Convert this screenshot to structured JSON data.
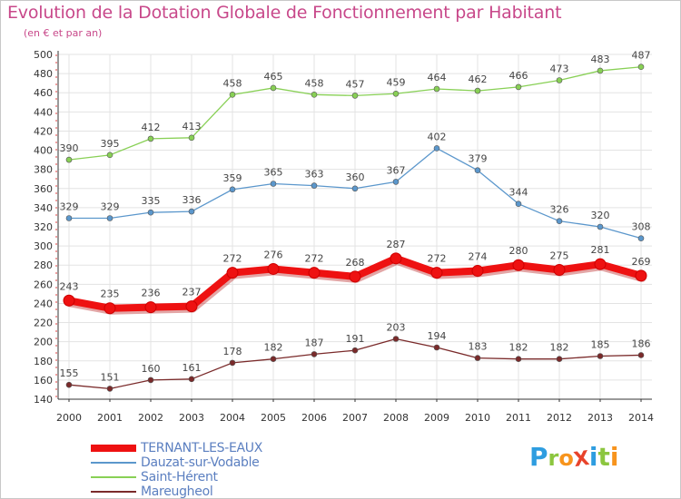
{
  "title": "Evolution de la Dotation Globale de Fonctionnement par Habitant",
  "subtitle": "(en € et par an)",
  "logo": {
    "text": "ProXiti",
    "letters": [
      "P",
      "r",
      "o",
      "X",
      "i",
      "t",
      "i"
    ],
    "colors": [
      "#2e9de0",
      "#8cc63f",
      "#f7941d",
      "#e8432b",
      "#2e9de0",
      "#8cc63f",
      "#f7941d"
    ]
  },
  "chart_data": {
    "type": "line",
    "title": "Evolution de la Dotation Globale de Fonctionnement par Habitant",
    "subtitle": "(en € et par an)",
    "xlabel": "",
    "ylabel": "",
    "x": [
      "2000",
      "2001",
      "2002",
      "2003",
      "2004",
      "2005",
      "2006",
      "2007",
      "2008",
      "2009",
      "2010",
      "2011",
      "2012",
      "2013",
      "2014"
    ],
    "ylim": [
      140,
      500
    ],
    "yticks": [
      140,
      160,
      180,
      200,
      220,
      240,
      260,
      280,
      300,
      320,
      340,
      360,
      380,
      400,
      420,
      440,
      460,
      480,
      500
    ],
    "grid": true,
    "legend_position": "bottom-left",
    "series": [
      {
        "name": "TERNANT-LES-EAUX",
        "color": "#ee1111",
        "values": [
          243,
          235,
          236,
          237,
          272,
          276,
          272,
          268,
          287,
          272,
          274,
          280,
          275,
          281,
          269
        ]
      },
      {
        "name": "Dauzat-sur-Vodable",
        "color": "#5b97cc",
        "values": [
          329,
          329,
          335,
          336,
          359,
          365,
          363,
          360,
          367,
          402,
          379,
          344,
          326,
          320,
          308
        ]
      },
      {
        "name": "Saint-Hérent",
        "color": "#88d055",
        "values": [
          390,
          395,
          412,
          413,
          458,
          465,
          458,
          457,
          459,
          464,
          462,
          466,
          473,
          483,
          487
        ]
      },
      {
        "name": "Mareugheol",
        "color": "#7a2a2a",
        "values": [
          155,
          151,
          160,
          161,
          178,
          182,
          187,
          191,
          203,
          194,
          183,
          182,
          182,
          185,
          186
        ]
      }
    ]
  }
}
